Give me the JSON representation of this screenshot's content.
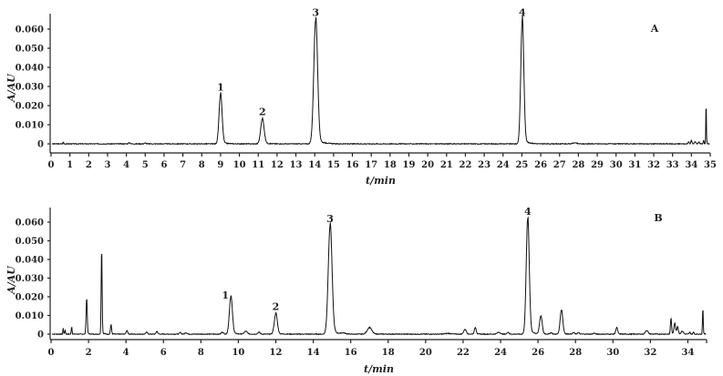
{
  "chart_data": [
    {
      "type": "line",
      "panel_label": "A",
      "xlabel": "t/min",
      "ylabel": "A/AU",
      "xlim": [
        0,
        35
      ],
      "ylim": [
        0,
        0.065
      ],
      "x_ticks": [
        "0",
        "1",
        "2",
        "3",
        "4",
        "5",
        "6",
        "7",
        "8",
        "9",
        "10",
        "11",
        "12",
        "13",
        "14",
        "15",
        "16",
        "17",
        "18",
        "19",
        "20",
        "21",
        "22",
        "23",
        "24",
        "25",
        "26",
        "27",
        "28",
        "29",
        "30",
        "31",
        "32",
        "33",
        "34",
        "35"
      ],
      "y_ticks": [
        "0",
        "0.010",
        "0.020",
        "0.030",
        "0.040",
        "0.050",
        "0.060"
      ],
      "grid": false,
      "peaks": [
        {
          "label": "1",
          "t": 9.0,
          "height": 0.026,
          "width": 0.08
        },
        {
          "label": "2",
          "t": 11.22,
          "height": 0.013,
          "width": 0.09
        },
        {
          "label": "3",
          "t": 14.05,
          "height": 0.065,
          "width": 0.1
        },
        {
          "label": "4",
          "t": 25.02,
          "height": 0.065,
          "width": 0.08
        },
        {
          "label": "",
          "t": 0.65,
          "height": 0.0008,
          "width": 0.02
        },
        {
          "label": "",
          "t": 4.15,
          "height": 0.0005,
          "width": 0.05
        },
        {
          "label": "",
          "t": 5.0,
          "height": 0.0004,
          "width": 0.05
        },
        {
          "label": "",
          "t": 27.8,
          "height": 0.0005,
          "width": 0.1
        },
        {
          "label": "",
          "t": 33.85,
          "height": 0.0012,
          "width": 0.03
        },
        {
          "label": "",
          "t": 34.0,
          "height": 0.0018,
          "width": 0.03
        },
        {
          "label": "",
          "t": 34.2,
          "height": 0.0012,
          "width": 0.03
        },
        {
          "label": "",
          "t": 34.4,
          "height": 0.001,
          "width": 0.03
        },
        {
          "label": "",
          "t": 34.65,
          "height": 0.0018,
          "width": 0.02
        },
        {
          "label": "",
          "t": 34.78,
          "height": 0.022,
          "width": 0.015
        }
      ]
    },
    {
      "type": "line",
      "panel_label": "B",
      "xlabel": "t/min",
      "ylabel": "A/AU",
      "xlim": [
        0,
        35
      ],
      "ylim": [
        0,
        0.062
      ],
      "x_ticks": [
        "0",
        "2",
        "4",
        "6",
        "8",
        "10",
        "12",
        "14",
        "16",
        "18",
        "20",
        "22",
        "24",
        "26",
        "28",
        "30",
        "32",
        "34"
      ],
      "y_ticks": [
        "0",
        "0.010",
        "0.020",
        "0.030",
        "0.040",
        "0.050",
        "0.060"
      ],
      "grid": false,
      "peaks": [
        {
          "label": "1",
          "t": 9.6,
          "height": 0.02,
          "width": 0.08
        },
        {
          "label": "2",
          "t": 12.0,
          "height": 0.011,
          "width": 0.08
        },
        {
          "label": "3",
          "t": 14.9,
          "height": 0.058,
          "width": 0.1
        },
        {
          "label": "4",
          "t": 25.45,
          "height": 0.062,
          "width": 0.08
        },
        {
          "label": "",
          "t": 0.65,
          "height": 0.003,
          "width": 0.02
        },
        {
          "label": "",
          "t": 0.75,
          "height": 0.002,
          "width": 0.02
        },
        {
          "label": "",
          "t": 1.1,
          "height": 0.004,
          "width": 0.02
        },
        {
          "label": "",
          "t": 1.9,
          "height": 0.019,
          "width": 0.03
        },
        {
          "label": "",
          "t": 2.7,
          "height": 0.045,
          "width": 0.025
        },
        {
          "label": "",
          "t": 3.2,
          "height": 0.005,
          "width": 0.03
        },
        {
          "label": "",
          "t": 4.05,
          "height": 0.002,
          "width": 0.04
        },
        {
          "label": "",
          "t": 5.1,
          "height": 0.001,
          "width": 0.05
        },
        {
          "label": "",
          "t": 5.65,
          "height": 0.0015,
          "width": 0.04
        },
        {
          "label": "",
          "t": 6.9,
          "height": 0.0008,
          "width": 0.05
        },
        {
          "label": "",
          "t": 7.2,
          "height": 0.0008,
          "width": 0.05
        },
        {
          "label": "",
          "t": 9.15,
          "height": 0.001,
          "width": 0.06
        },
        {
          "label": "",
          "t": 10.4,
          "height": 0.0015,
          "width": 0.08
        },
        {
          "label": "",
          "t": 11.1,
          "height": 0.001,
          "width": 0.06
        },
        {
          "label": "",
          "t": 15.6,
          "height": 0.0005,
          "width": 0.1
        },
        {
          "label": "",
          "t": 17.0,
          "height": 0.0035,
          "width": 0.12
        },
        {
          "label": "",
          "t": 21.2,
          "height": 0.0004,
          "width": 0.15
        },
        {
          "label": "",
          "t": 22.1,
          "height": 0.0025,
          "width": 0.07
        },
        {
          "label": "",
          "t": 22.65,
          "height": 0.0035,
          "width": 0.05
        },
        {
          "label": "",
          "t": 23.9,
          "height": 0.001,
          "width": 0.08
        },
        {
          "label": "",
          "t": 24.4,
          "height": 0.001,
          "width": 0.05
        },
        {
          "label": "",
          "t": 26.15,
          "height": 0.0095,
          "width": 0.07
        },
        {
          "label": "",
          "t": 26.7,
          "height": 0.0008,
          "width": 0.05
        },
        {
          "label": "",
          "t": 27.25,
          "height": 0.013,
          "width": 0.07
        },
        {
          "label": "",
          "t": 27.9,
          "height": 0.0008,
          "width": 0.05
        },
        {
          "label": "",
          "t": 28.15,
          "height": 0.0008,
          "width": 0.05
        },
        {
          "label": "",
          "t": 29.0,
          "height": 0.0005,
          "width": 0.05
        },
        {
          "label": "",
          "t": 30.2,
          "height": 0.0035,
          "width": 0.05
        },
        {
          "label": "",
          "t": 31.8,
          "height": 0.002,
          "width": 0.07
        },
        {
          "label": "",
          "t": 33.1,
          "height": 0.0085,
          "width": 0.03
        },
        {
          "label": "",
          "t": 33.3,
          "height": 0.006,
          "width": 0.04
        },
        {
          "label": "",
          "t": 33.45,
          "height": 0.004,
          "width": 0.04
        },
        {
          "label": "",
          "t": 33.7,
          "height": 0.0015,
          "width": 0.06
        },
        {
          "label": "",
          "t": 34.1,
          "height": 0.001,
          "width": 0.03
        },
        {
          "label": "",
          "t": 34.3,
          "height": 0.001,
          "width": 0.03
        },
        {
          "label": "",
          "t": 34.8,
          "height": 0.014,
          "width": 0.02
        }
      ]
    }
  ]
}
